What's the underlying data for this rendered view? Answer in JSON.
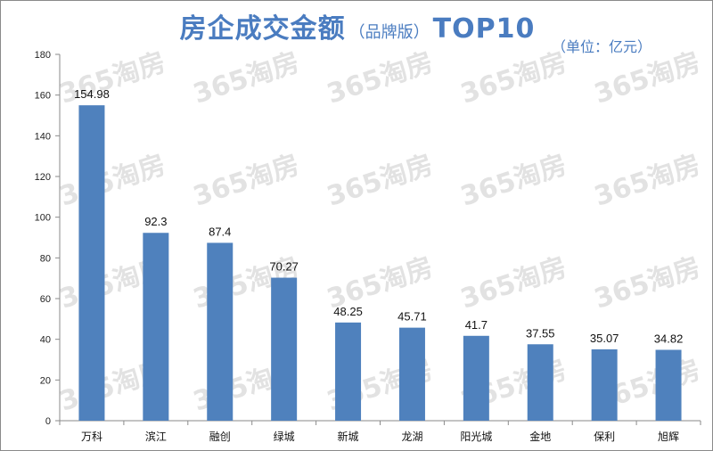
{
  "title": {
    "main": "房企成交金额",
    "sub": "（品牌版）",
    "top": "TOP10"
  },
  "unit_label": "（单位：亿元）",
  "watermark": "365淘房",
  "colors": {
    "bar": "#4f81bd",
    "title": "#4a7cc0",
    "axis": "#8a8a8a"
  },
  "chart_data": {
    "type": "bar",
    "title": "房企成交金额（品牌版）TOP10",
    "unit": "（单位：亿元）",
    "categories": [
      "万科",
      "滨江",
      "融创",
      "绿城",
      "新城",
      "龙湖",
      "阳光城",
      "金地",
      "保利",
      "旭辉"
    ],
    "values": [
      154.98,
      92.3,
      87.4,
      70.27,
      48.25,
      45.71,
      41.7,
      37.55,
      35.07,
      34.82
    ],
    "value_labels": [
      "154.98",
      "92.3",
      "87.4",
      "70.27",
      "48.25",
      "45.71",
      "41.7",
      "37.55",
      "35.07",
      "34.82"
    ],
    "ylim": [
      0,
      180
    ],
    "yticks": [
      0,
      20,
      40,
      60,
      80,
      100,
      120,
      140,
      160,
      180
    ],
    "xlabel": "",
    "ylabel": "",
    "grid": false,
    "legend": "none"
  }
}
